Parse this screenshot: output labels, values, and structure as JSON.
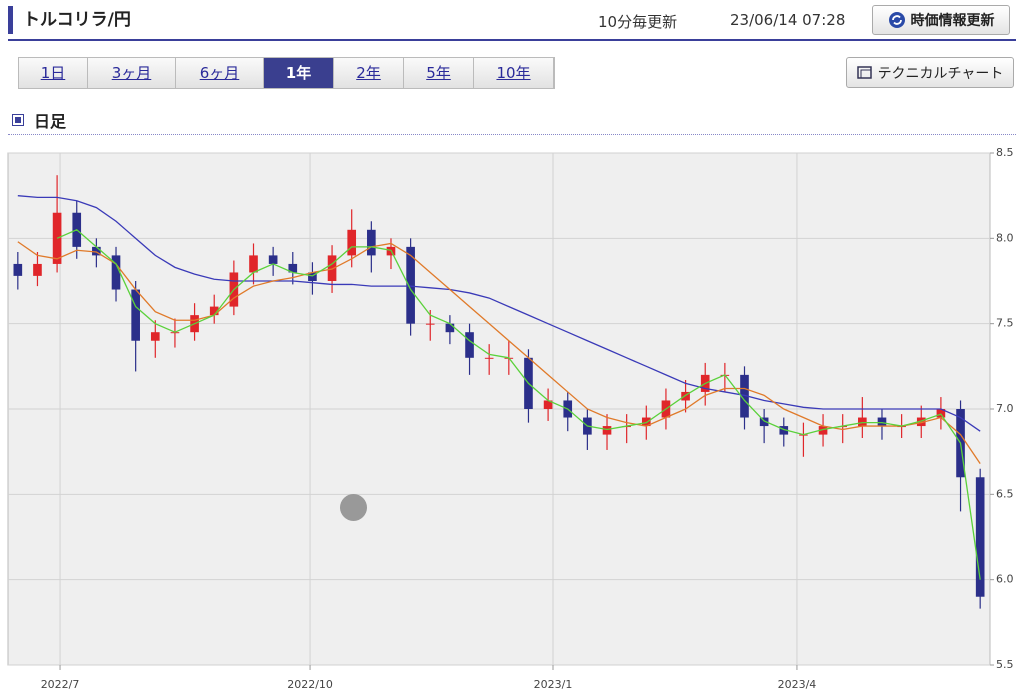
{
  "header": {
    "title": "トルコリラ/円",
    "update_note": "10分毎更新",
    "timestamp": "23/06/14 07:28",
    "refresh_button": "時価情報更新"
  },
  "tabs": {
    "items": [
      "1日",
      "3ヶ月",
      "6ヶ月",
      "1年",
      "2年",
      "5年",
      "10年"
    ],
    "active": 3
  },
  "technical_button": "テクニカルチャート",
  "section_title": "日足",
  "chart_data": {
    "type": "candlestick",
    "up_color": "#e0262a",
    "down_color": "#2b2f8a",
    "grid": true,
    "categories": [
      null,
      null,
      null,
      null,
      null,
      null,
      null,
      null,
      null,
      null,
      null,
      null,
      null,
      null,
      null,
      null,
      null,
      null,
      null,
      null,
      null,
      null,
      null,
      null,
      null,
      null,
      null,
      null,
      null,
      null,
      null,
      null,
      null,
      null,
      null,
      null,
      null,
      null,
      null,
      null,
      null,
      null,
      null,
      null,
      null,
      null,
      null,
      null,
      null,
      null
    ],
    "open": [
      7.85,
      7.78,
      7.85,
      8.15,
      7.95,
      7.9,
      7.7,
      7.4,
      7.45,
      7.45,
      7.55,
      7.6,
      7.8,
      7.9,
      7.85,
      7.8,
      7.75,
      7.9,
      8.05,
      7.9,
      7.95,
      7.5,
      7.5,
      7.45,
      7.3,
      7.3,
      7.3,
      7.0,
      7.05,
      6.95,
      6.85,
      6.9,
      6.9,
      6.95,
      7.05,
      7.1,
      7.2,
      7.2,
      6.95,
      6.9,
      6.85,
      6.85,
      6.9,
      6.9,
      6.95,
      6.9,
      6.9,
      6.95,
      7.0,
      6.6
    ],
    "high": [
      7.92,
      7.92,
      8.37,
      8.22,
      8.0,
      7.95,
      7.75,
      7.52,
      7.53,
      7.62,
      7.67,
      7.87,
      7.97,
      7.95,
      7.92,
      7.86,
      7.96,
      8.17,
      8.1,
      8.0,
      8.0,
      7.58,
      7.55,
      7.5,
      7.38,
      7.4,
      7.35,
      7.12,
      7.1,
      7.0,
      6.97,
      6.97,
      7.02,
      7.12,
      7.17,
      7.27,
      7.27,
      7.25,
      7.0,
      6.95,
      6.92,
      6.97,
      6.97,
      7.07,
      7.0,
      6.97,
      7.02,
      7.07,
      7.05,
      6.65
    ],
    "low": [
      7.7,
      7.72,
      7.8,
      7.88,
      7.83,
      7.63,
      7.22,
      7.3,
      7.36,
      7.4,
      7.5,
      7.55,
      7.73,
      7.78,
      7.73,
      7.67,
      7.68,
      7.83,
      7.8,
      7.82,
      7.43,
      7.4,
      7.38,
      7.2,
      7.2,
      7.2,
      6.92,
      6.93,
      6.87,
      6.76,
      6.76,
      6.8,
      6.82,
      6.88,
      6.98,
      7.02,
      7.1,
      6.88,
      6.8,
      6.78,
      6.72,
      6.78,
      6.8,
      6.83,
      6.82,
      6.83,
      6.83,
      6.88,
      6.4,
      5.83
    ],
    "close": [
      7.78,
      7.85,
      8.15,
      7.95,
      7.9,
      7.7,
      7.4,
      7.45,
      7.45,
      7.55,
      7.6,
      7.8,
      7.9,
      7.85,
      7.8,
      7.75,
      7.9,
      8.05,
      7.9,
      7.95,
      7.5,
      7.5,
      7.45,
      7.3,
      7.3,
      7.3,
      7.0,
      7.05,
      6.95,
      6.85,
      6.9,
      6.9,
      6.95,
      7.05,
      7.1,
      7.2,
      7.2,
      6.95,
      6.9,
      6.85,
      6.85,
      6.9,
      6.9,
      6.95,
      6.9,
      6.9,
      6.95,
      7.0,
      6.6,
      5.9
    ],
    "series": [
      {
        "color": "#3a3ab8",
        "values": [
          8.25,
          8.24,
          8.24,
          8.22,
          8.18,
          8.1,
          8.0,
          7.9,
          7.83,
          7.79,
          7.76,
          7.75,
          7.75,
          7.75,
          7.75,
          7.74,
          7.73,
          7.73,
          7.72,
          7.72,
          7.72,
          7.71,
          7.7,
          7.68,
          7.65,
          7.6,
          7.55,
          7.5,
          7.45,
          7.4,
          7.35,
          7.3,
          7.25,
          7.2,
          7.15,
          7.12,
          7.1,
          7.08,
          7.05,
          7.03,
          7.01,
          7.0,
          7.0,
          7.0,
          7.0,
          7.0,
          7.0,
          7.0,
          6.95,
          6.87
        ]
      },
      {
        "color": "#e07a2a",
        "values": [
          7.98,
          7.9,
          7.88,
          7.93,
          7.92,
          7.85,
          7.7,
          7.57,
          7.52,
          7.52,
          7.55,
          7.65,
          7.72,
          7.75,
          7.77,
          7.8,
          7.82,
          7.88,
          7.95,
          7.97,
          7.9,
          7.8,
          7.7,
          7.6,
          7.5,
          7.4,
          7.3,
          7.2,
          7.1,
          7.0,
          6.95,
          6.92,
          6.9,
          6.95,
          7.0,
          7.08,
          7.12,
          7.12,
          7.08,
          7.0,
          6.95,
          6.9,
          6.88,
          6.9,
          6.9,
          6.9,
          6.92,
          6.95,
          6.85,
          6.68
        ]
      },
      {
        "color": "#5ad13a",
        "values": [
          null,
          null,
          8.0,
          8.05,
          7.95,
          7.85,
          7.6,
          7.5,
          7.45,
          7.5,
          7.55,
          7.7,
          7.8,
          7.85,
          7.8,
          7.78,
          7.85,
          7.95,
          7.95,
          7.93,
          7.7,
          7.55,
          7.5,
          7.4,
          7.32,
          7.3,
          7.15,
          7.05,
          7.0,
          6.9,
          6.88,
          6.9,
          6.92,
          7.0,
          7.08,
          7.15,
          7.2,
          7.05,
          6.93,
          6.88,
          6.85,
          6.88,
          6.9,
          6.92,
          6.92,
          6.9,
          6.93,
          6.97,
          6.8,
          6.0
        ]
      }
    ],
    "xlim": [
      -0.5,
      49.5
    ],
    "xticks": [
      {
        "value": 2.15,
        "label": "2022/7"
      },
      {
        "value": 14.88,
        "label": "2022/10"
      },
      {
        "value": 27.25,
        "label": "2023/1"
      },
      {
        "value": 39.67,
        "label": "2023/4"
      }
    ],
    "ylim": [
      5.5,
      8.5
    ],
    "yticks": [
      8.5,
      {
        "value": 8,
        "label": "8.0"
      },
      7.5,
      {
        "value": 7,
        "label": "7.0"
      },
      6.5,
      {
        "value": 6,
        "label": "6.0"
      },
      5.5
    ]
  }
}
